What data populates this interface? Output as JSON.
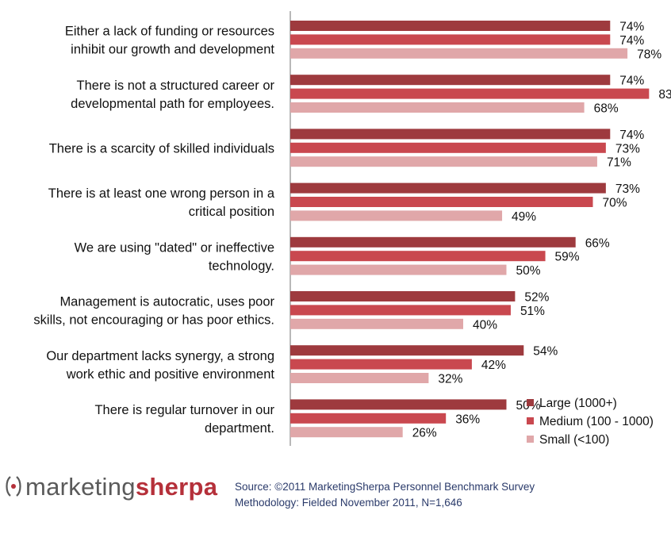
{
  "chart_data": {
    "type": "bar",
    "orientation": "horizontal",
    "categories": [
      [
        "Either a lack of funding or  resources",
        "inhibit our growth and development"
      ],
      [
        "There is not a structured career or",
        "developmental path for employees."
      ],
      [
        "There is a scarcity of skilled individuals"
      ],
      [
        "There is at least one wrong person in a",
        "critical position"
      ],
      [
        "We are using \"dated\" or ineffective",
        "technology."
      ],
      [
        "Management is autocratic, uses poor",
        "skills, not encouraging or has poor ethics."
      ],
      [
        "Our department lacks synergy, a strong",
        "work ethic and positive environment"
      ],
      [
        "There is regular turnover in our",
        "department."
      ]
    ],
    "series": [
      {
        "name": "Large (1000+)",
        "color": "#9e3a3e",
        "values": [
          74,
          74,
          74,
          73,
          66,
          52,
          54,
          50
        ]
      },
      {
        "name": "Medium (100 - 1000)",
        "color": "#c9484f",
        "values": [
          74,
          83,
          73,
          70,
          59,
          51,
          42,
          36
        ]
      },
      {
        "name": "Small (<100)",
        "color": "#e0a7a9",
        "values": [
          78,
          68,
          71,
          49,
          50,
          40,
          32,
          26
        ]
      }
    ],
    "value_suffix": "%",
    "xlim": [
      0,
      100
    ],
    "legend_position": "bottom-right",
    "grid": false
  },
  "footer": {
    "logo_part1": "marketing",
    "logo_part2": "sherpa",
    "source_line": "Source: ©2011 MarketingSherpa Personnel Benchmark Survey",
    "methodology_line": "Methodology: Fielded November 2011, N=1,646"
  }
}
